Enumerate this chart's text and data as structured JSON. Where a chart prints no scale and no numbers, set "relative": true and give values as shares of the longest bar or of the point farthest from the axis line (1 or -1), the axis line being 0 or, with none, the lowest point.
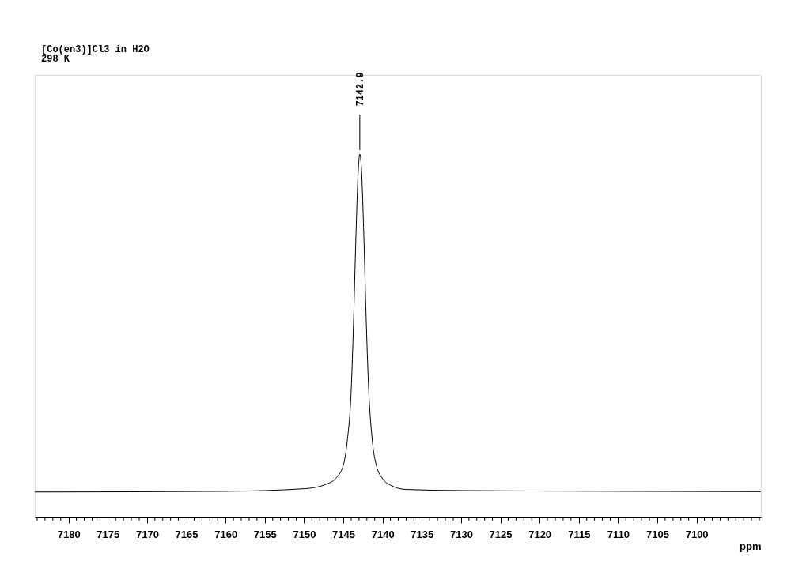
{
  "chart_data": {
    "type": "line",
    "title": "[Co(en3)]Cl3 in H2O",
    "subtitle": "298 K",
    "xlabel": "ppm",
    "relative": true,
    "color": "#000000",
    "grid": false,
    "marker": "none",
    "line_style": "solid",
    "x": [
      7184.3,
      7160,
      7150,
      7147,
      7146,
      7145,
      7144.5,
      7144,
      7143.7,
      7143.4,
      7143.1,
      7142.9,
      7142.7,
      7142.4,
      7142.1,
      7141.8,
      7141.3,
      7140.8,
      7140,
      7139,
      7137,
      7130,
      7110,
      7091.8
    ],
    "values": [
      0.07,
      0.072,
      0.079,
      0.093,
      0.107,
      0.144,
      0.21,
      0.349,
      0.535,
      0.768,
      0.954,
      1,
      0.963,
      0.786,
      0.554,
      0.368,
      0.21,
      0.144,
      0.107,
      0.089,
      0.077,
      0.074,
      0.072,
      0.071
    ],
    "annotations": [
      {
        "text": "7142.9",
        "x": 7142.9,
        "y": 1
      }
    ],
    "xlim": [
      7184.3,
      7091.8
    ],
    "xticks": [
      {
        "value": 7184,
        "label": null
      },
      {
        "value": 7183,
        "label": null
      },
      {
        "value": 7182,
        "label": null
      },
      {
        "value": 7181,
        "label": null
      },
      7180,
      {
        "value": 7179,
        "label": null
      },
      {
        "value": 7178,
        "label": null
      },
      {
        "value": 7177,
        "label": null
      },
      {
        "value": 7176,
        "label": null
      },
      7175,
      {
        "value": 7174,
        "label": null
      },
      {
        "value": 7173,
        "label": null
      },
      {
        "value": 7172,
        "label": null
      },
      {
        "value": 7171,
        "label": null
      },
      7170,
      {
        "value": 7169,
        "label": null
      },
      {
        "value": 7168,
        "label": null
      },
      {
        "value": 7167,
        "label": null
      },
      {
        "value": 7166,
        "label": null
      },
      7165,
      {
        "value": 7164,
        "label": null
      },
      {
        "value": 7163,
        "label": null
      },
      {
        "value": 7162,
        "label": null
      },
      {
        "value": 7161,
        "label": null
      },
      7160,
      {
        "value": 7159,
        "label": null
      },
      {
        "value": 7158,
        "label": null
      },
      {
        "value": 7157,
        "label": null
      },
      {
        "value": 7156,
        "label": null
      },
      7155,
      {
        "value": 7154,
        "label": null
      },
      {
        "value": 7153,
        "label": null
      },
      {
        "value": 7152,
        "label": null
      },
      {
        "value": 7151,
        "label": null
      },
      7150,
      {
        "value": 7149,
        "label": null
      },
      {
        "value": 7148,
        "label": null
      },
      {
        "value": 7147,
        "label": null
      },
      {
        "value": 7146,
        "label": null
      },
      7145,
      {
        "value": 7144,
        "label": null
      },
      {
        "value": 7143,
        "label": null
      },
      {
        "value": 7142,
        "label": null
      },
      {
        "value": 7141,
        "label": null
      },
      7140,
      {
        "value": 7139,
        "label": null
      },
      {
        "value": 7138,
        "label": null
      },
      {
        "value": 7137,
        "label": null
      },
      {
        "value": 7136,
        "label": null
      },
      7135,
      {
        "value": 7134,
        "label": null
      },
      {
        "value": 7133,
        "label": null
      },
      {
        "value": 7132,
        "label": null
      },
      {
        "value": 7131,
        "label": null
      },
      7130,
      {
        "value": 7129,
        "label": null
      },
      {
        "value": 7128,
        "label": null
      },
      {
        "value": 7127,
        "label": null
      },
      {
        "value": 7126,
        "label": null
      },
      7125,
      {
        "value": 7124,
        "label": null
      },
      {
        "value": 7123,
        "label": null
      },
      {
        "value": 7122,
        "label": null
      },
      {
        "value": 7121,
        "label": null
      },
      7120,
      {
        "value": 7119,
        "label": null
      },
      {
        "value": 7118,
        "label": null
      },
      {
        "value": 7117,
        "label": null
      },
      {
        "value": 7116,
        "label": null
      },
      7115,
      {
        "value": 7114,
        "label": null
      },
      {
        "value": 7113,
        "label": null
      },
      {
        "value": 7112,
        "label": null
      },
      {
        "value": 7111,
        "label": null
      },
      7110,
      {
        "value": 7109,
        "label": null
      },
      {
        "value": 7108,
        "label": null
      },
      {
        "value": 7107,
        "label": null
      },
      {
        "value": 7106,
        "label": null
      },
      7105,
      {
        "value": 7104,
        "label": null
      },
      {
        "value": 7103,
        "label": null
      },
      {
        "value": 7102,
        "label": null
      },
      {
        "value": 7101,
        "label": null
      },
      7100,
      {
        "value": 7099,
        "label": null
      },
      {
        "value": 7098,
        "label": null
      },
      {
        "value": 7097,
        "label": null
      },
      {
        "value": 7096,
        "label": null
      },
      {
        "value": 7095,
        "label": null
      },
      {
        "value": 7094,
        "label": null
      },
      {
        "value": 7093,
        "label": null
      },
      {
        "value": 7092,
        "label": null
      }
    ]
  }
}
